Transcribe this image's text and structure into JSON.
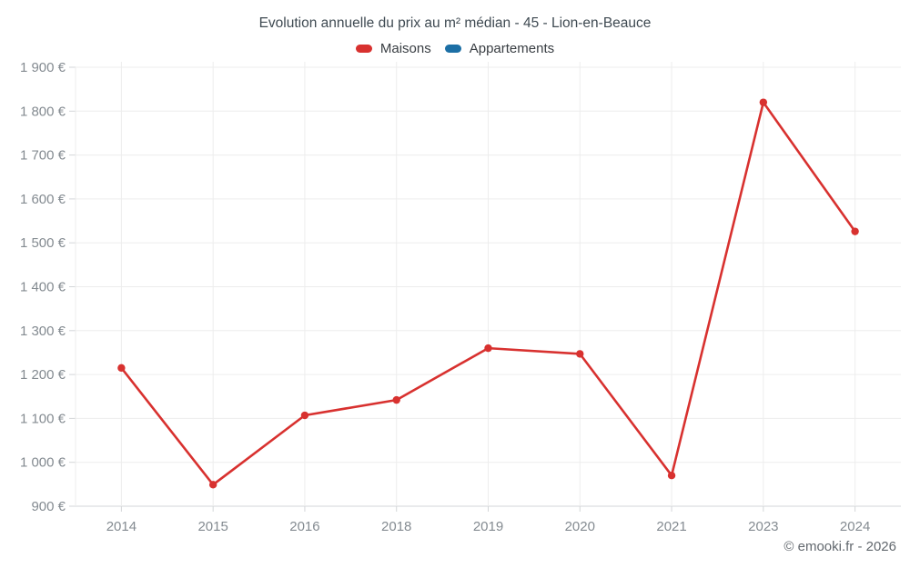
{
  "page": {
    "background": "#ffffff",
    "footer": "© emooki.fr - 2026"
  },
  "chart_data": {
    "type": "line",
    "title": "Evolution annuelle du prix au m² médian - 45 - Lion-en-Beauce",
    "categories": [
      "2014",
      "2015",
      "2016",
      "2018",
      "2019",
      "2020",
      "2021",
      "2023",
      "2024"
    ],
    "series": [
      {
        "name": "Maisons",
        "color": "#d8312f",
        "values": [
          1215,
          949,
          1107,
          1142,
          1260,
          1247,
          970,
          1820,
          1526
        ]
      },
      {
        "name": "Appartements",
        "color": "#1c6fa5",
        "values": []
      }
    ],
    "ylim": [
      900,
      1900
    ],
    "ytick_step": 100,
    "ytick_suffix": " €",
    "grid": true,
    "legend_position": "top",
    "xlabel": "",
    "ylabel": "",
    "colors": {
      "gridline": "#ededed",
      "axis_line": "#d3d6d8",
      "axis_label": "#848b91",
      "title": "#3f4a52"
    }
  }
}
